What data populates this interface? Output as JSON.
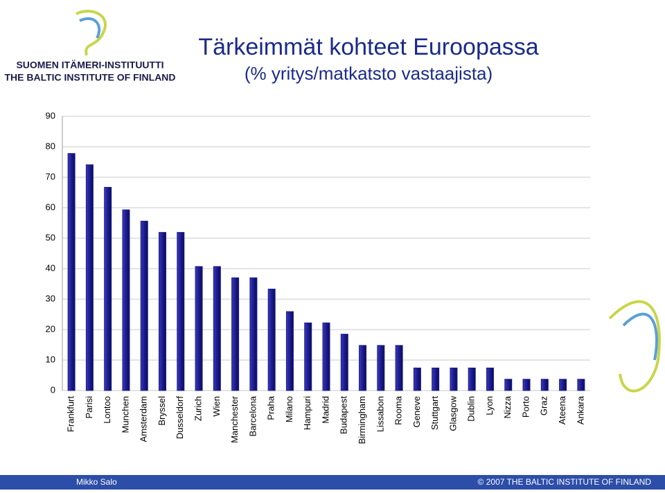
{
  "logo": {
    "line1": "SUOMEN ITÄMERI-INSTITUUTTI",
    "line2": "THE BALTIC INSTITUTE OF FINLAND"
  },
  "footer": {
    "author": "Mikko Salo",
    "copyright": "© 2007 THE BALTIC INSTITUTE OF FINLAND"
  },
  "chart_data": {
    "type": "bar",
    "title": "Tärkeimmät kohteet Euroopassa",
    "subtitle": "(% yritys/matkatsto vastaajista)",
    "categories": [
      "Frankfurt",
      "Parisi",
      "Lontoo",
      "Munchen",
      "Amsterdam",
      "Bryssel",
      "Dusseldorf",
      "Zurich",
      "Wien",
      "Manchester",
      "Barcelona",
      "Praha",
      "Milano",
      "Hampuri",
      "Madrid",
      "Budapest",
      "Birmingham",
      "Lissabon",
      "Rooma",
      "Geneve",
      "Stuttgart",
      "Glasgow",
      "Dublin",
      "Lyon",
      "Nizza",
      "Porto",
      "Graz",
      "Ateena",
      "Ankara"
    ],
    "values": [
      77.8,
      74.1,
      66.7,
      59.3,
      55.6,
      51.9,
      51.9,
      40.7,
      40.7,
      37.0,
      37.0,
      33.3,
      25.9,
      22.2,
      22.2,
      18.5,
      14.8,
      14.8,
      14.8,
      7.4,
      7.4,
      7.4,
      7.4,
      7.4,
      3.7,
      3.7,
      3.7,
      3.7,
      3.7
    ],
    "color": "#1c1c8e",
    "ylim": [
      0,
      90
    ],
    "yticks": [
      0,
      10,
      20,
      30,
      40,
      50,
      60,
      70,
      80,
      90
    ],
    "grid": true
  }
}
